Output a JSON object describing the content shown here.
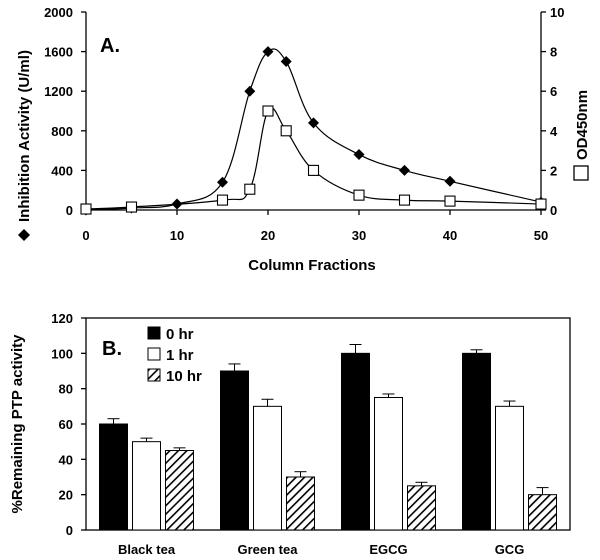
{
  "chart_data": [
    {
      "type": "line",
      "panel_label": "A.",
      "xlabel": "Column Fractions",
      "xlim": [
        0,
        50
      ],
      "x_ticks": [
        "0",
        "10",
        "20",
        "30",
        "40",
        "50"
      ],
      "y_left_label": "Inhibition Activity (U/ml)",
      "y_left_lim": [
        0,
        2000
      ],
      "y_left_ticks": [
        "0",
        "400",
        "800",
        "1200",
        "1600",
        "2000"
      ],
      "y_right_label": "OD450nm",
      "y_right_lim": [
        0,
        10
      ],
      "y_right_ticks": [
        "0",
        "2",
        "4",
        "6",
        "8",
        "10"
      ],
      "series": [
        {
          "name": "Inhibition Activity",
          "axis": "left",
          "marker": "filled-diamond",
          "x": [
            0,
            5,
            10,
            15,
            18,
            20,
            22,
            25,
            30,
            35,
            40,
            50
          ],
          "y": [
            0,
            20,
            60,
            280,
            1200,
            1600,
            1500,
            880,
            560,
            400,
            290,
            80
          ]
        },
        {
          "name": "OD450nm",
          "axis": "right",
          "marker": "open-square",
          "x": [
            0,
            5,
            15,
            18,
            20,
            22,
            25,
            30,
            35,
            40,
            50
          ],
          "y": [
            0.05,
            0.15,
            0.5,
            1.05,
            5.0,
            4.0,
            2.0,
            0.75,
            0.5,
            0.45,
            0.3
          ]
        }
      ]
    },
    {
      "type": "bar",
      "panel_label": "B.",
      "ylabel": "%Remaining PTP activity",
      "ylim": [
        0,
        120
      ],
      "y_ticks": [
        "0",
        "20",
        "40",
        "60",
        "80",
        "100",
        "120"
      ],
      "categories": [
        "Black tea",
        "Green tea",
        "EGCG",
        "GCG"
      ],
      "series": [
        {
          "name": "0 hr",
          "fill": "#000000",
          "values": [
            60,
            90,
            100,
            100
          ],
          "errors": [
            3,
            4,
            5,
            2
          ]
        },
        {
          "name": "1 hr",
          "fill": "#ffffff",
          "values": [
            50,
            70,
            75,
            70
          ],
          "errors": [
            2,
            4,
            2,
            3
          ]
        },
        {
          "name": "10 hr",
          "fill": "hatch",
          "values": [
            45,
            30,
            25,
            20
          ],
          "errors": [
            1.5,
            3,
            2,
            4
          ]
        }
      ]
    }
  ]
}
